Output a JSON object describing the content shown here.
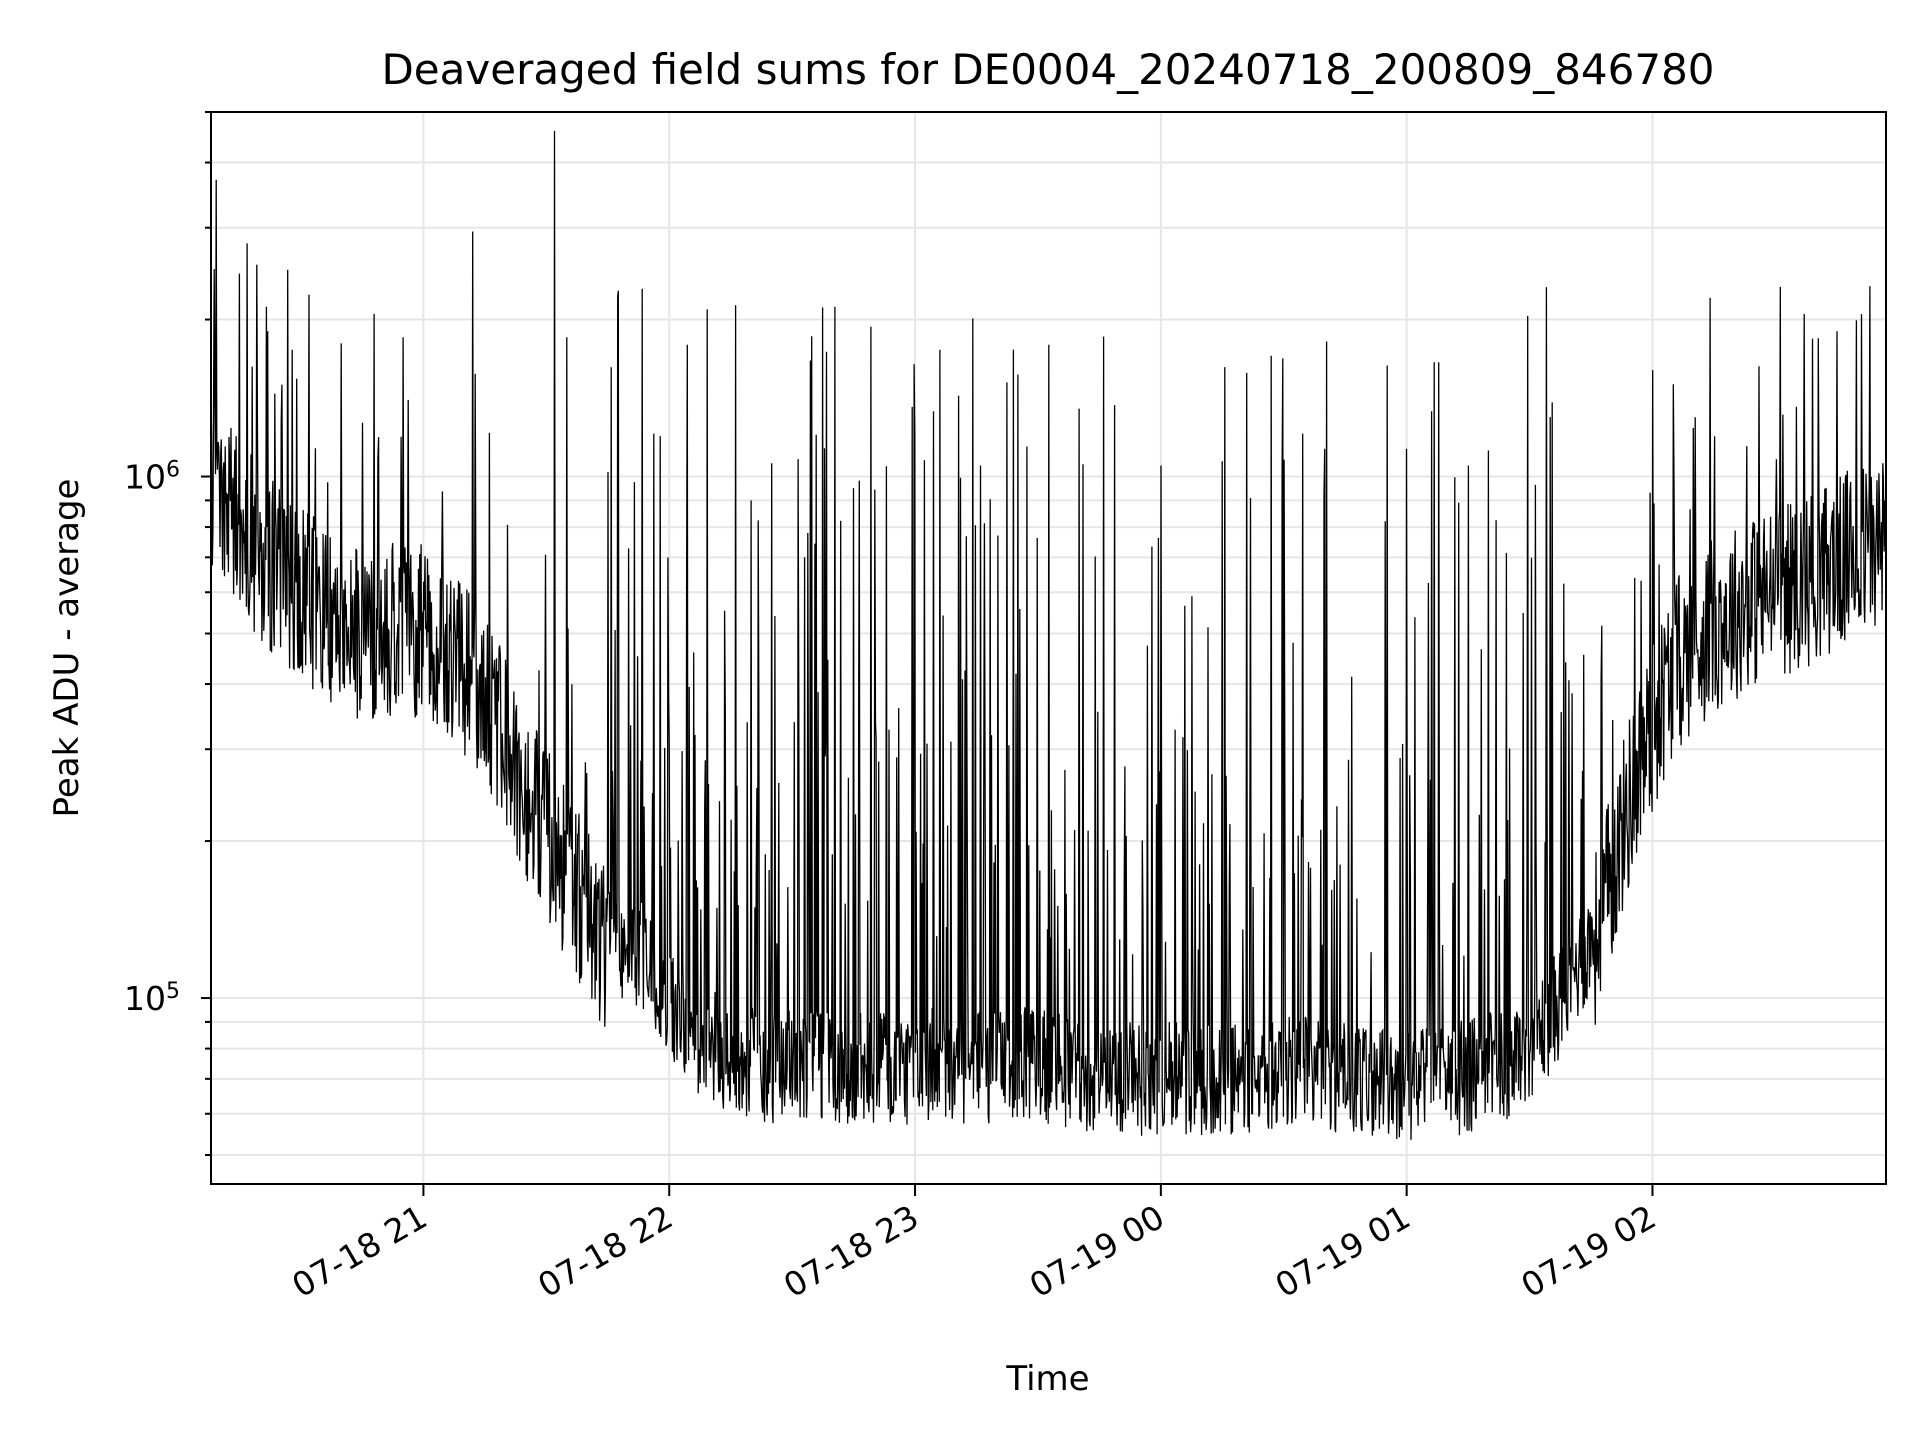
{
  "chart_data": {
    "type": "line",
    "title": "Deaveraged field sums for DE0004_20240718_200809_846780",
    "xlabel": "Time",
    "ylabel": "Peak ADU - average",
    "yscale": "log",
    "ylim": [
      44000,
      5000000
    ],
    "xlim": [
      "2024-07-18T20:08:09",
      "2024-07-19T02:57:00"
    ],
    "grid": true,
    "legend": "none",
    "line_color": "#000000",
    "x_ticks": [
      {
        "value": "2024-07-18T21:00:00",
        "label": "07-18 21"
      },
      {
        "value": "2024-07-18T22:00:00",
        "label": "07-18 22"
      },
      {
        "value": "2024-07-18T23:00:00",
        "label": "07-18 23"
      },
      {
        "value": "2024-07-19T00:00:00",
        "label": "07-19 00"
      },
      {
        "value": "2024-07-19T01:00:00",
        "label": "07-19 01"
      },
      {
        "value": "2024-07-19T02:00:00",
        "label": "07-19 02"
      }
    ],
    "y_ticks": [
      {
        "value": 100000,
        "base": "10",
        "exp": "5"
      },
      {
        "value": 1000000,
        "base": "10",
        "exp": "6"
      }
    ],
    "series": [
      {
        "x": [
          "2024-07-18T20:08:09",
          "2024-07-18T20:15:00",
          "2024-07-18T20:25:00",
          "2024-07-18T20:35:00",
          "2024-07-18T20:45:00",
          "2024-07-18T20:55:00",
          "2024-07-18T21:05:00",
          "2024-07-18T21:15:00",
          "2024-07-18T21:25:00",
          "2024-07-18T21:35:00",
          "2024-07-18T21:45:00",
          "2024-07-18T21:55:00",
          "2024-07-18T22:05:00",
          "2024-07-18T22:15:00",
          "2024-07-18T22:25:00",
          "2024-07-18T22:35:00",
          "2024-07-18T22:45:00",
          "2024-07-18T22:55:00",
          "2024-07-18T23:05:00",
          "2024-07-18T23:15:00",
          "2024-07-18T23:25:00",
          "2024-07-18T23:35:00",
          "2024-07-18T23:45:00",
          "2024-07-18T23:55:00",
          "2024-07-19T00:05:00",
          "2024-07-19T00:15:00",
          "2024-07-19T00:25:00",
          "2024-07-19T00:35:00",
          "2024-07-19T00:45:00",
          "2024-07-19T00:55:00",
          "2024-07-19T01:05:00",
          "2024-07-19T01:15:00",
          "2024-07-19T01:25:00",
          "2024-07-19T01:35:00",
          "2024-07-19T01:45:00",
          "2024-07-19T01:55:00",
          "2024-07-19T02:05:00",
          "2024-07-19T02:15:00",
          "2024-07-19T02:25:00",
          "2024-07-19T02:35:00",
          "2024-07-19T02:45:00",
          "2024-07-19T02:57:00"
        ],
        "y": [
          1000000,
          800000,
          650000,
          550000,
          500000,
          520000,
          480000,
          380000,
          250000,
          170000,
          125000,
          110000,
          80000,
          72000,
          68000,
          70000,
          68000,
          68000,
          70000,
          68000,
          70000,
          68000,
          66000,
          65000,
          66000,
          65000,
          67000,
          68000,
          66000,
          64000,
          64000,
          66000,
          70000,
          85000,
          120000,
          250000,
          430000,
          520000,
          580000,
          620000,
          680000,
          760000
        ]
      }
    ],
    "spikes": [
      {
        "x": "2024-07-18T20:09:00",
        "y": 2500000
      },
      {
        "x": "2024-07-18T20:15:00",
        "y": 2450000
      },
      {
        "x": "2024-07-18T20:22:00",
        "y": 1900000
      },
      {
        "x": "2024-07-18T20:28:00",
        "y": 1750000
      },
      {
        "x": "2024-07-18T20:40:00",
        "y": 1800000
      },
      {
        "x": "2024-07-18T20:48:00",
        "y": 2050000
      },
      {
        "x": "2024-07-18T20:55:00",
        "y": 1850000
      },
      {
        "x": "2024-07-18T21:12:00",
        "y": 2950000
      },
      {
        "x": "2024-07-18T21:32:00",
        "y": 4600000
      },
      {
        "x": "2024-07-18T21:35:00",
        "y": 1850000
      },
      {
        "x": "2024-07-18T21:45:00",
        "y": 1020000
      },
      {
        "x": "2024-07-18T22:06:00",
        "y": 460000
      },
      {
        "x": "2024-07-18T22:20:00",
        "y": 900000
      },
      {
        "x": "2024-07-18T22:33:00",
        "y": 700000
      },
      {
        "x": "2024-07-18T22:45:00",
        "y": 950000
      },
      {
        "x": "2024-07-18T23:00:00",
        "y": 1200000
      },
      {
        "x": "2024-07-18T23:06:00",
        "y": 1750000
      },
      {
        "x": "2024-07-18T23:16:00",
        "y": 1050000
      },
      {
        "x": "2024-07-18T23:40:00",
        "y": 1350000
      },
      {
        "x": "2024-07-19T00:00:00",
        "y": 1050000
      },
      {
        "x": "2024-07-19T00:15:00",
        "y": 1070000
      },
      {
        "x": "2024-07-19T00:40:00",
        "y": 1130000
      },
      {
        "x": "2024-07-19T01:00:00",
        "y": 1130000
      },
      {
        "x": "2024-07-19T01:15:00",
        "y": 1050000
      },
      {
        "x": "2024-07-19T01:35:00",
        "y": 1300000
      },
      {
        "x": "2024-07-19T02:00:00",
        "y": 1600000
      },
      {
        "x": "2024-07-19T02:14:00",
        "y": 2200000
      },
      {
        "x": "2024-07-19T02:37:00",
        "y": 2050000
      },
      {
        "x": "2024-07-19T02:45:00",
        "y": 1900000
      }
    ]
  }
}
